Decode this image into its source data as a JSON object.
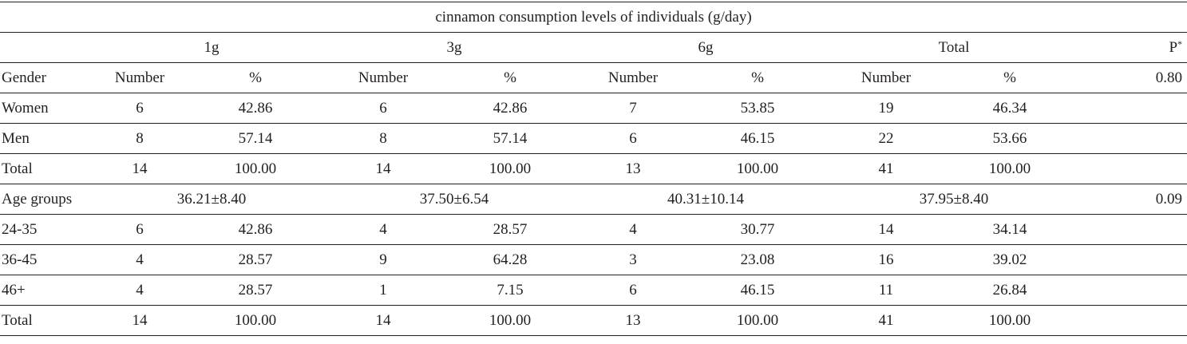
{
  "table": {
    "caption": "cinnamon consumption levels of individuals (g/day)",
    "group_headers": [
      "1g",
      "3g",
      "6g",
      "Total"
    ],
    "p_header": "P",
    "p_marker": "*",
    "sub_headers": {
      "label": "Gender",
      "number": "Number",
      "percent": "%",
      "p_value": "0.80"
    },
    "gender_rows": [
      {
        "label": "Women",
        "cells": [
          "6",
          "42.86",
          "6",
          "42.86",
          "7",
          "53.85",
          "19",
          "46.34"
        ]
      },
      {
        "label": "Men",
        "cells": [
          "8",
          "57.14",
          "8",
          "57.14",
          "6",
          "46.15",
          "22",
          "53.66"
        ]
      },
      {
        "label": "Total",
        "cells": [
          "14",
          "100.00",
          "14",
          "100.00",
          "13",
          "100.00",
          "41",
          "100.00"
        ]
      }
    ],
    "age_header": {
      "label": "Age groups",
      "means": [
        "36.21±8.40",
        "37.50±6.54",
        "40.31±10.14",
        "37.95±8.40"
      ],
      "p_value": "0.09"
    },
    "age_rows": [
      {
        "label": "24-35",
        "cells": [
          "6",
          "42.86",
          "4",
          "28.57",
          "4",
          "30.77",
          "14",
          "34.14"
        ]
      },
      {
        "label": "36-45",
        "cells": [
          "4",
          "28.57",
          "9",
          "64.28",
          "3",
          "23.08",
          "16",
          "39.02"
        ]
      },
      {
        "label": "46+",
        "cells": [
          "4",
          "28.57",
          "1",
          "7.15",
          "6",
          "46.15",
          "11",
          "26.84"
        ]
      },
      {
        "label": "Total",
        "cells": [
          "14",
          "100.00",
          "14",
          "100.00",
          "13",
          "100.00",
          "41",
          "100.00"
        ]
      }
    ]
  }
}
